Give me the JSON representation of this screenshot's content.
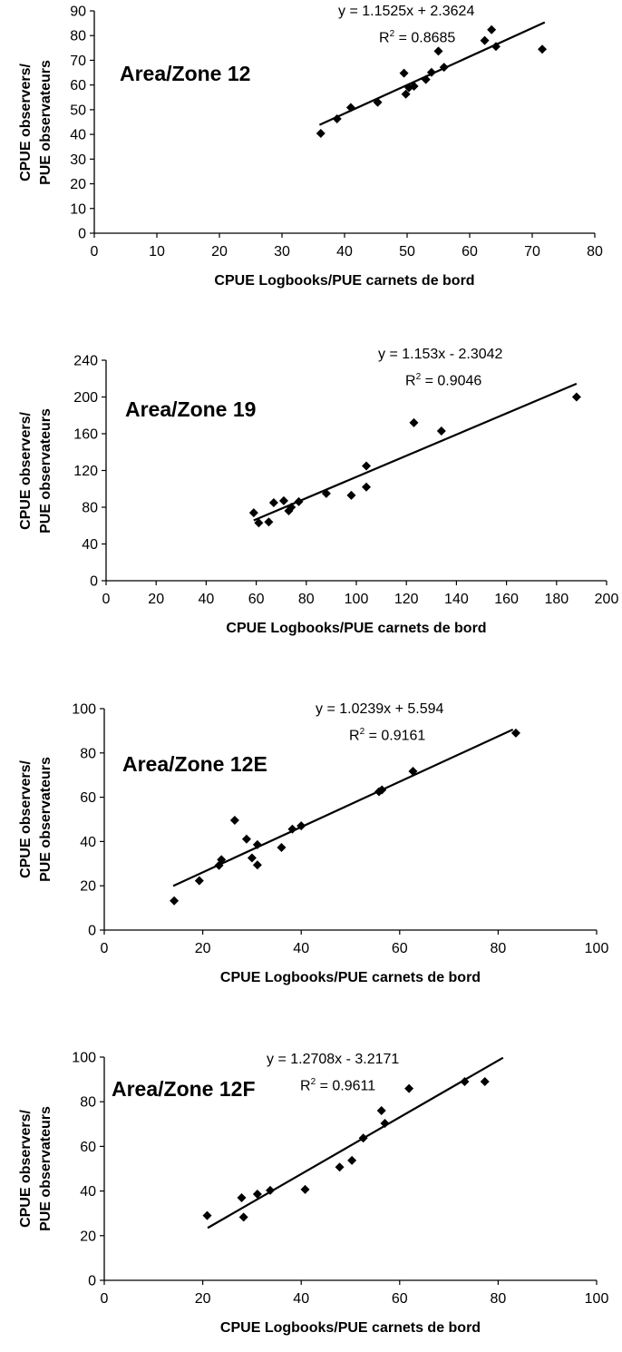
{
  "chart_data": [
    {
      "type": "scatter",
      "title": "Area/Zone 12",
      "ylabel": [
        "CPUE observers/",
        "PUE observateurs"
      ],
      "xlabel": "CPUE Logbooks/PUE carnets de bord",
      "xlim": [
        0,
        80
      ],
      "xticks": [
        0,
        10,
        20,
        30,
        40,
        50,
        60,
        70,
        80
      ],
      "ylim": [
        0,
        90
      ],
      "yticks": [
        0,
        10,
        20,
        30,
        40,
        50,
        60,
        70,
        80,
        90
      ],
      "equation": "y = 1.1525x + 2.3624",
      "r2_label": "R",
      "r2_value": " = 0.8685",
      "trendline": {
        "slope": 1.1525,
        "intercept": 2.3624,
        "x_range": [
          36,
          72
        ]
      },
      "points": [
        {
          "x": 36.2,
          "y": 40.4
        },
        {
          "x": 38.8,
          "y": 46.3
        },
        {
          "x": 41.0,
          "y": 50.9
        },
        {
          "x": 45.3,
          "y": 53.0
        },
        {
          "x": 49.5,
          "y": 64.8
        },
        {
          "x": 49.8,
          "y": 56.3
        },
        {
          "x": 50.3,
          "y": 58.9
        },
        {
          "x": 51.1,
          "y": 59.5
        },
        {
          "x": 53.0,
          "y": 62.2
        },
        {
          "x": 53.9,
          "y": 65.1
        },
        {
          "x": 55.0,
          "y": 73.7
        },
        {
          "x": 55.9,
          "y": 67.2
        },
        {
          "x": 62.4,
          "y": 78.0
        },
        {
          "x": 63.5,
          "y": 82.4
        },
        {
          "x": 64.2,
          "y": 75.6
        },
        {
          "x": 71.6,
          "y": 74.5
        }
      ]
    },
    {
      "type": "scatter",
      "title": "Area/Zone 19",
      "ylabel": [
        "CPUE observers/",
        "PUE observateurs"
      ],
      "xlabel": "CPUE Logbooks/PUE carnets de bord",
      "xlim": [
        0,
        200
      ],
      "xticks": [
        0,
        20,
        40,
        60,
        80,
        100,
        120,
        140,
        160,
        180,
        200
      ],
      "ylim": [
        0,
        240
      ],
      "yticks": [
        0,
        40,
        80,
        120,
        160,
        200,
        240
      ],
      "equation": "y = 1.153x - 2.3042",
      "r2_label": "R",
      "r2_value": " = 0.9046",
      "trendline": {
        "slope": 1.153,
        "intercept": -2.3042,
        "x_range": [
          59,
          188
        ]
      },
      "points": [
        {
          "x": 59,
          "y": 74
        },
        {
          "x": 61,
          "y": 63
        },
        {
          "x": 65,
          "y": 64
        },
        {
          "x": 67,
          "y": 85
        },
        {
          "x": 71,
          "y": 87
        },
        {
          "x": 73,
          "y": 76
        },
        {
          "x": 74,
          "y": 80
        },
        {
          "x": 77,
          "y": 86
        },
        {
          "x": 88,
          "y": 95
        },
        {
          "x": 98,
          "y": 93
        },
        {
          "x": 104,
          "y": 102
        },
        {
          "x": 104,
          "y": 125
        },
        {
          "x": 123,
          "y": 172
        },
        {
          "x": 134,
          "y": 163
        },
        {
          "x": 188,
          "y": 200
        }
      ]
    },
    {
      "type": "scatter",
      "title": "Area/Zone 12E",
      "ylabel": [
        "CPUE observers/",
        "PUE observateurs"
      ],
      "xlabel": "CPUE Logbooks/PUE carnets de bord",
      "xlim": [
        0,
        100
      ],
      "xticks": [
        0,
        20,
        40,
        60,
        80,
        100
      ],
      "ylim": [
        0,
        100
      ],
      "yticks": [
        0,
        20,
        40,
        60,
        80,
        100
      ],
      "equation": "y = 1.0239x + 5.594",
      "r2_label": "R",
      "r2_value": " = 0.9161",
      "trendline": {
        "slope": 1.0239,
        "intercept": 5.594,
        "x_range": [
          14,
          83
        ]
      },
      "points": [
        {
          "x": 14.2,
          "y": 13.2
        },
        {
          "x": 19.3,
          "y": 22.3
        },
        {
          "x": 23.3,
          "y": 29.2
        },
        {
          "x": 23.8,
          "y": 31.8
        },
        {
          "x": 26.5,
          "y": 49.6
        },
        {
          "x": 28.9,
          "y": 41.1
        },
        {
          "x": 30.0,
          "y": 32.6
        },
        {
          "x": 31.1,
          "y": 29.4
        },
        {
          "x": 31.1,
          "y": 38.6
        },
        {
          "x": 36.0,
          "y": 37.3
        },
        {
          "x": 38.2,
          "y": 45.6
        },
        {
          "x": 40.0,
          "y": 47.1
        },
        {
          "x": 55.8,
          "y": 62.5
        },
        {
          "x": 56.4,
          "y": 63.3
        },
        {
          "x": 62.7,
          "y": 71.7
        },
        {
          "x": 83.6,
          "y": 89.0
        }
      ]
    },
    {
      "type": "scatter",
      "title": "Area/Zone 12F",
      "ylabel": [
        "CPUE observers/",
        "PUE observateurs"
      ],
      "xlabel": "CPUE Logbooks/PUE carnets de bord",
      "xlim": [
        0,
        100
      ],
      "xticks": [
        0,
        20,
        40,
        60,
        80,
        100
      ],
      "ylim": [
        0,
        100
      ],
      "yticks": [
        0,
        20,
        40,
        60,
        80,
        100
      ],
      "equation": "y = 1.2708x - 3.2171",
      "r2_label": "R",
      "r2_value": " = 0.9611",
      "trendline": {
        "slope": 1.2708,
        "intercept": -3.2171,
        "x_range": [
          21,
          81
        ]
      },
      "points": [
        {
          "x": 20.9,
          "y": 29.0
        },
        {
          "x": 27.9,
          "y": 37.0
        },
        {
          "x": 28.3,
          "y": 28.3
        },
        {
          "x": 31.1,
          "y": 38.6
        },
        {
          "x": 33.7,
          "y": 40.3
        },
        {
          "x": 40.8,
          "y": 40.7
        },
        {
          "x": 47.8,
          "y": 50.7
        },
        {
          "x": 50.3,
          "y": 53.7
        },
        {
          "x": 52.6,
          "y": 63.7
        },
        {
          "x": 56.3,
          "y": 76.0
        },
        {
          "x": 57.0,
          "y": 70.3
        },
        {
          "x": 61.9,
          "y": 85.9
        },
        {
          "x": 73.2,
          "y": 89.0
        },
        {
          "x": 77.3,
          "y": 89.0
        }
      ]
    }
  ]
}
